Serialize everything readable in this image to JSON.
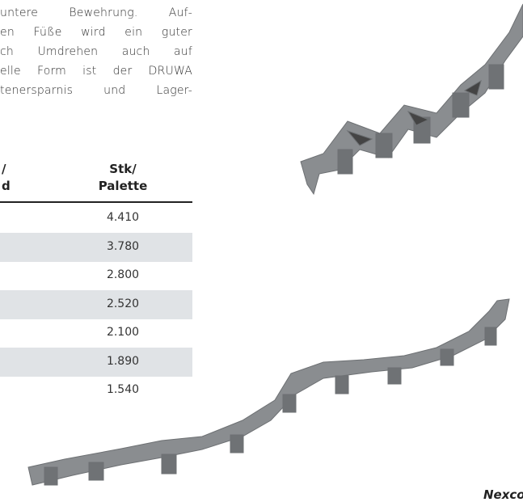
{
  "paragraph": {
    "lines": [
      "untere Bewehrung. Auf-",
      "en Füße wird ein guter",
      "ch Umdrehen auch auf",
      "elle Form ist der DRUWA",
      "tenersparnis und Lager-"
    ]
  },
  "table": {
    "headers": [
      [
        "/",
        "d"
      ],
      [
        "Stk/",
        "Palette"
      ]
    ],
    "rows": [
      "4.410",
      "3.780",
      "2.800",
      "2.520",
      "2.100",
      "1.890",
      "1.540"
    ]
  },
  "logo": "Nexco"
}
